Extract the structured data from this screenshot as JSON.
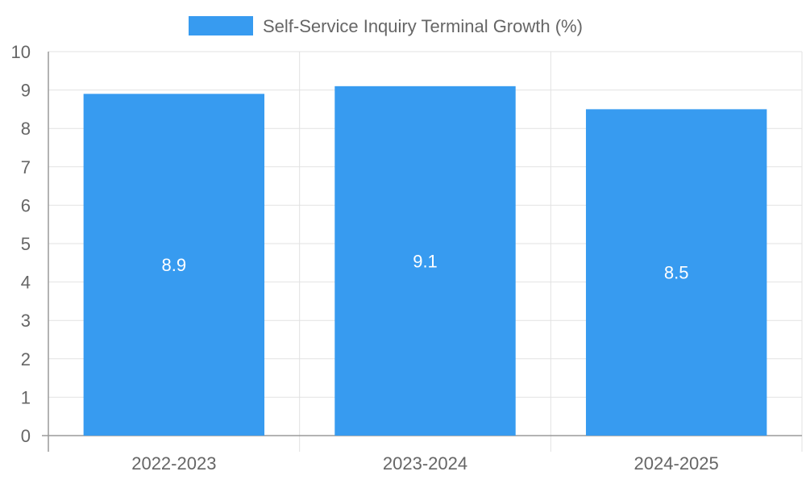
{
  "chart_data": {
    "type": "bar",
    "categories": [
      "2022-2023",
      "2023-2024",
      "2024-2025"
    ],
    "series": [
      {
        "name": "Self-Service Inquiry Terminal Growth (%)",
        "values": [
          8.9,
          9.1,
          8.5
        ],
        "color": "#379bf0"
      }
    ],
    "data_labels": [
      "8.9",
      "9.1",
      "8.5"
    ],
    "y_ticks": [
      "0",
      "1",
      "2",
      "3",
      "4",
      "5",
      "6",
      "7",
      "8",
      "9",
      "10"
    ],
    "ylim": [
      0,
      10
    ],
    "grid": true,
    "legend_position": "top-center"
  }
}
